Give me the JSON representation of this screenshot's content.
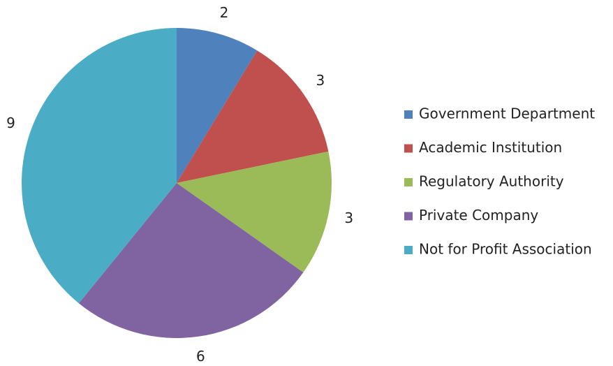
{
  "chart_data": {
    "type": "pie",
    "categories": [
      "Government Department",
      "Academic Institution",
      "Regulatory Authority",
      "Private Company",
      "Not for Profit Association"
    ],
    "values": [
      2,
      3,
      3,
      6,
      9
    ],
    "colors": [
      "#4f81bd",
      "#c0504d",
      "#9bbb59",
      "#8064a2",
      "#4bacc6"
    ],
    "legend": "right"
  }
}
